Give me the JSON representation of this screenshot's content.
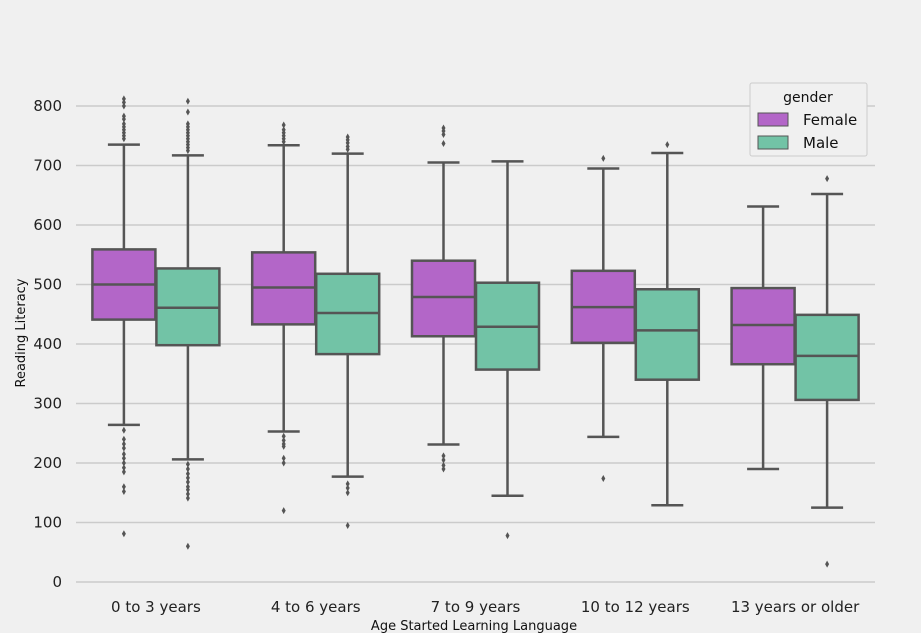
{
  "chart_data": {
    "type": "box",
    "xlabel": "Age Started Learning Language",
    "ylabel": "Reading Literacy",
    "ylim": [
      0,
      850
    ],
    "yticks": [
      0,
      100,
      200,
      300,
      400,
      500,
      600,
      700,
      800
    ],
    "grid": true,
    "legend": {
      "title": "gender",
      "placement": "top-right"
    },
    "categories": [
      "0 to 3 years",
      "4 to 6 years",
      "7 to 9 years",
      "10 to 12 years",
      "13 years or older"
    ],
    "series": [
      {
        "name": "Female",
        "color": "#b366c8",
        "boxes": [
          {
            "whisker_low": 264,
            "q1": 441,
            "median": 500,
            "q3": 559,
            "whisker_high": 735,
            "outliers": [
              812,
              806,
              800,
              783,
              778,
              770,
              765,
              760,
              755,
              750,
              745,
              255,
              240,
              232,
              225,
              215,
              208,
              200,
              192,
              185,
              160,
              152,
              81
            ]
          },
          {
            "whisker_low": 253,
            "q1": 433,
            "median": 495,
            "q3": 554,
            "whisker_high": 734,
            "outliers": [
              768,
              760,
              755,
              750,
              745,
              740,
              245,
              238,
              232,
              228,
              208,
              200,
              120
            ]
          },
          {
            "whisker_low": 231,
            "q1": 413,
            "median": 479,
            "q3": 540,
            "whisker_high": 705,
            "outliers": [
              763,
              758,
              752,
              737,
              212,
              205,
              196,
              190
            ]
          },
          {
            "whisker_low": 244,
            "q1": 402,
            "median": 462,
            "q3": 523,
            "whisker_high": 695,
            "outliers": [
              712,
              174
            ]
          },
          {
            "whisker_low": 190,
            "q1": 366,
            "median": 432,
            "q3": 494,
            "whisker_high": 631,
            "outliers": []
          }
        ]
      },
      {
        "name": "Male",
        "color": "#72c3a6",
        "boxes": [
          {
            "whisker_low": 206,
            "q1": 398,
            "median": 461,
            "q3": 527,
            "whisker_high": 717,
            "outliers": [
              808,
              790,
              770,
              765,
              760,
              755,
              750,
              745,
              740,
              735,
              730,
              725,
              198,
              190,
              182,
              175,
              168,
              160,
              155,
              148,
              141,
              60
            ]
          },
          {
            "whisker_low": 177,
            "q1": 383,
            "median": 452,
            "q3": 518,
            "whisker_high": 720,
            "outliers": [
              748,
              743,
              738,
              732,
              727,
              165,
              158,
              150,
              95
            ]
          },
          {
            "whisker_low": 145,
            "q1": 357,
            "median": 429,
            "q3": 503,
            "whisker_high": 707,
            "outliers": [
              78
            ]
          },
          {
            "whisker_low": 129,
            "q1": 340,
            "median": 423,
            "q3": 492,
            "whisker_high": 721,
            "outliers": [
              735
            ]
          },
          {
            "whisker_low": 125,
            "q1": 306,
            "median": 380,
            "q3": 449,
            "whisker_high": 652,
            "outliers": [
              678,
              30
            ]
          }
        ]
      }
    ]
  }
}
